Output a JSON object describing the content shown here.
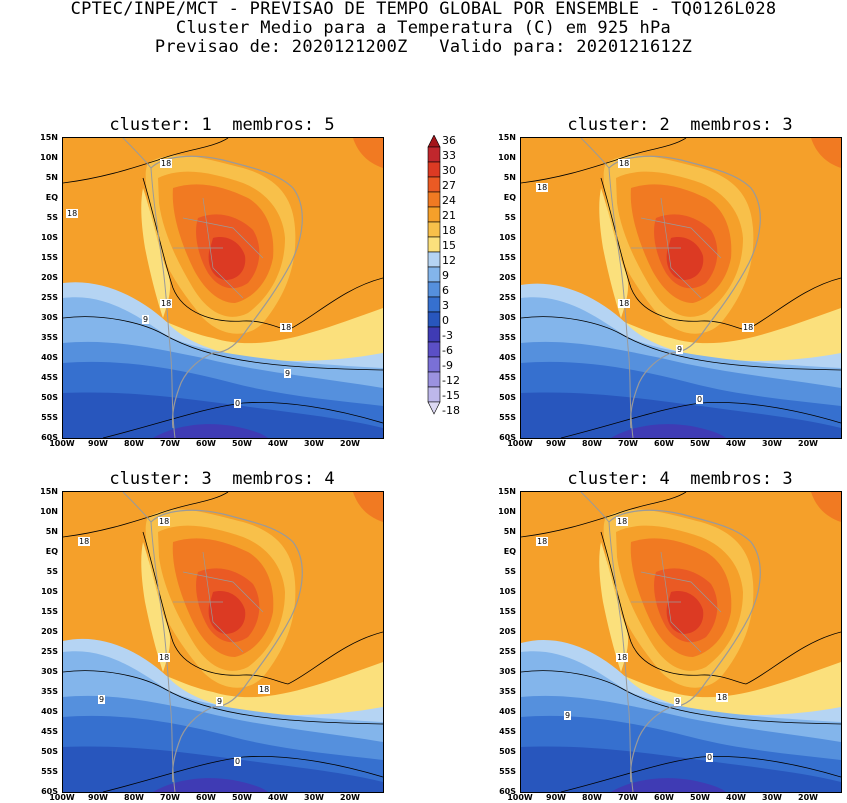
{
  "header": {
    "line1": "CPTEC/INPE/MCT - PREVISAO DE TEMPO GLOBAL POR ENSEMBLE - TQ0126L028",
    "line2": "Cluster Medio para a Temperatura (C) em 925 hPa",
    "line3": "Previsao de: 2020121200Z   Valido para: 2020121612Z"
  },
  "panels": [
    {
      "title": "cluster: 1  membros: 5",
      "contour_labels": [
        "18",
        "18",
        "18",
        "18",
        "9",
        "9",
        "0"
      ]
    },
    {
      "title": "cluster: 2  membros: 3",
      "contour_labels": [
        "18",
        "18",
        "18",
        "18",
        "9",
        "0"
      ]
    },
    {
      "title": "cluster: 3  membros: 4",
      "contour_labels": [
        "18",
        "18",
        "18",
        "18",
        "9",
        "9",
        "0"
      ]
    },
    {
      "title": "cluster: 4  membros: 3",
      "contour_labels": [
        "18",
        "18",
        "18",
        "18",
        "9",
        "9",
        "0"
      ]
    }
  ],
  "axes": {
    "lat_labels": [
      "15N",
      "10N",
      "5N",
      "EQ",
      "5S",
      "10S",
      "15S",
      "20S",
      "25S",
      "30S",
      "35S",
      "40S",
      "45S",
      "50S",
      "55S",
      "60S"
    ],
    "lon_labels": [
      "100W",
      "90W",
      "80W",
      "70W",
      "60W",
      "50W",
      "40W",
      "30W",
      "20W"
    ]
  },
  "legend": {
    "levels": [
      "36",
      "33",
      "30",
      "27",
      "24",
      "21",
      "18",
      "15",
      "12",
      "9",
      "6",
      "3",
      "0",
      "-3",
      "-6",
      "-9",
      "-12",
      "-15",
      "-18"
    ],
    "colors": [
      "#a4151a",
      "#c0272d",
      "#dc3a23",
      "#ea5a24",
      "#f17a22",
      "#f5a02a",
      "#f8c04a",
      "#fbe07c",
      "#b5d4f3",
      "#83b5eb",
      "#5590dd",
      "#3670cf",
      "#2856bd",
      "#3f3bb4",
      "#5b4fc6",
      "#7a70d6",
      "#9b92e0",
      "#bdb7ea",
      "#dcd8f3"
    ]
  }
}
